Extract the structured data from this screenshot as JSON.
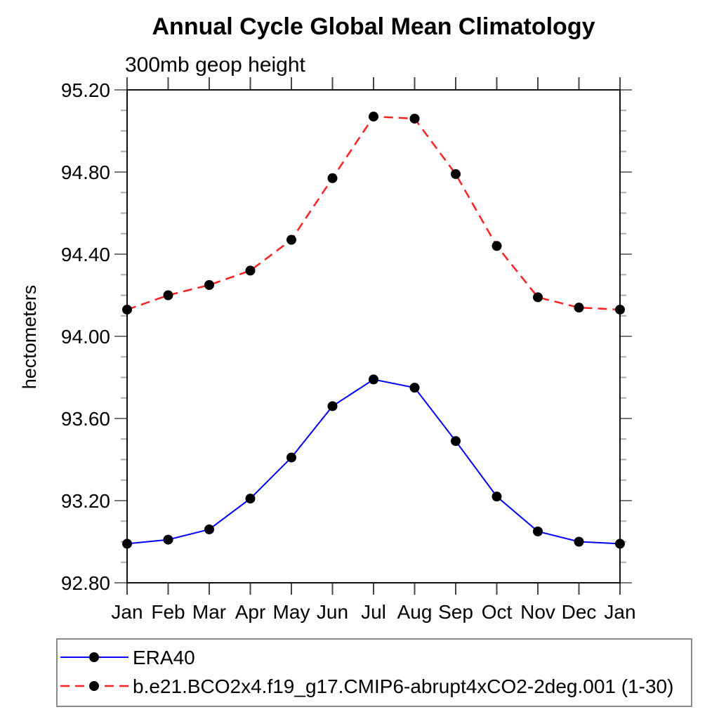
{
  "page": {
    "background": "#ffffff"
  },
  "chart_data": {
    "type": "line",
    "title": "Annual Cycle Global Mean Climatology",
    "subtitle": "300mb geop height",
    "ylabel": "hectometers",
    "xlabel": "",
    "categories": [
      "Jan",
      "Feb",
      "Mar",
      "Apr",
      "May",
      "Jun",
      "Jul",
      "Aug",
      "Sep",
      "Oct",
      "Nov",
      "Dec",
      "Jan"
    ],
    "ylim": [
      92.8,
      95.2
    ],
    "ytick_labels": [
      "92.80",
      "93.20",
      "93.60",
      "94.00",
      "94.40",
      "94.80",
      "95.20"
    ],
    "minor_tick_step": 0.1,
    "grid": false,
    "legend_position": "bottom-left",
    "series": [
      {
        "name": "ERA40",
        "color": "#0000ff",
        "line_style": "solid",
        "marker": "filled-circle",
        "marker_color": "#000000",
        "values": [
          92.99,
          93.01,
          93.06,
          93.21,
          93.41,
          93.66,
          93.79,
          93.75,
          93.49,
          93.22,
          93.05,
          93.0,
          92.99
        ]
      },
      {
        "name": "b.e21.BCO2x4.f19_g17.CMIP6-abrupt4xCO2-2deg.001 (1-30)",
        "color": "#ff2020",
        "line_style": "dashed",
        "marker": "filled-circle",
        "marker_color": "#000000",
        "values": [
          94.13,
          94.2,
          94.25,
          94.32,
          94.47,
          94.77,
          95.07,
          95.06,
          94.79,
          94.44,
          94.19,
          94.14,
          94.13
        ]
      }
    ]
  },
  "colors": {
    "frame": "#111111",
    "major_tick": "#777777",
    "minor_tick": "#aaaaaa",
    "month_tick": "#444444",
    "legend_border": "#8a8a8a",
    "text": "#000000"
  }
}
